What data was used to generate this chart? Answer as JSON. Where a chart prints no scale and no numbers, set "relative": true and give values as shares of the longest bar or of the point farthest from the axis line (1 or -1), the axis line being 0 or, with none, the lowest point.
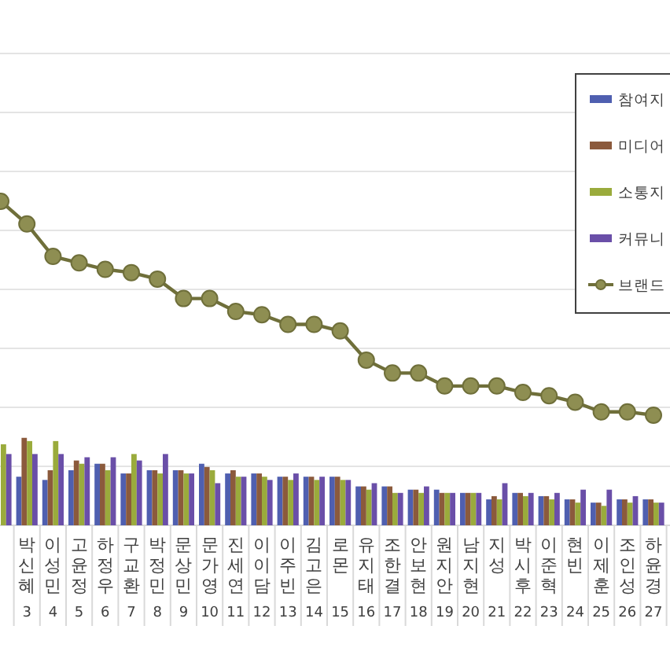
{
  "chart_data": {
    "type": "bar",
    "relative": true,
    "grid": "y",
    "legend": "right",
    "categories": [
      null,
      "박신혜\n3",
      "이성민\n4",
      "고윤정\n5",
      "하정우\n6",
      "구교환\n7",
      "박정민\n8",
      "문상민\n9",
      "문가영\n10",
      "진세연\n11",
      "이이담\n12",
      "이주빈\n13",
      "김고은\n14",
      "로몬\n15",
      "유지태\n16",
      "조한결\n17",
      "안보현\n18",
      "원지안\n19",
      "남지현\n20",
      "지성\n21",
      "박시후\n22",
      "이준혁\n23",
      "현빈\n24",
      "이제훈\n25",
      "조인성\n26",
      "하윤경\n27"
    ],
    "series": [
      {
        "name": "참여지",
        "color": "#4f5fb0",
        "values": [
          null,
          0.15,
          0.14,
          0.17,
          0.19,
          0.16,
          0.17,
          0.17,
          0.19,
          0.16,
          0.16,
          0.15,
          0.15,
          0.15,
          0.12,
          0.12,
          0.11,
          0.11,
          0.1,
          0.08,
          0.1,
          0.09,
          0.08,
          0.07,
          0.08,
          0.08
        ]
      },
      {
        "name": "미디어",
        "color": "#8b5a3c",
        "values": [
          null,
          0.27,
          0.17,
          0.2,
          0.19,
          0.16,
          0.17,
          0.17,
          0.18,
          0.17,
          0.16,
          0.15,
          0.15,
          0.15,
          0.12,
          0.12,
          0.11,
          0.1,
          0.1,
          0.09,
          0.1,
          0.09,
          0.08,
          0.07,
          0.08,
          0.08
        ]
      },
      {
        "name": "소통지",
        "color": "#9aab3c",
        "values": [
          0.25,
          0.26,
          0.26,
          0.19,
          0.17,
          0.22,
          0.16,
          0.16,
          0.17,
          0.15,
          0.15,
          0.14,
          0.14,
          0.14,
          0.11,
          0.1,
          0.1,
          0.1,
          0.1,
          0.08,
          0.09,
          0.08,
          0.07,
          0.06,
          0.07,
          0.07
        ]
      },
      {
        "name": "커뮤니",
        "color": "#6a4fa8",
        "values": [
          0.22,
          0.22,
          0.22,
          0.21,
          0.21,
          0.2,
          0.22,
          0.16,
          0.13,
          0.15,
          0.14,
          0.16,
          0.15,
          0.14,
          0.13,
          0.1,
          0.12,
          0.1,
          0.1,
          0.13,
          0.1,
          0.1,
          0.11,
          0.11,
          0.09,
          0.07
        ]
      },
      {
        "name": "브랜드",
        "type": "line",
        "color": "#8e8e52",
        "marker": "circle",
        "line_style": "solid",
        "values": [
          1,
          0.93,
          0.83,
          0.81,
          0.79,
          0.78,
          0.76,
          0.7,
          0.7,
          0.66,
          0.65,
          0.62,
          0.62,
          0.6,
          0.51,
          0.47,
          0.47,
          0.43,
          0.43,
          0.43,
          0.41,
          0.4,
          0.38,
          0.35,
          0.35,
          0.34
        ]
      }
    ]
  }
}
